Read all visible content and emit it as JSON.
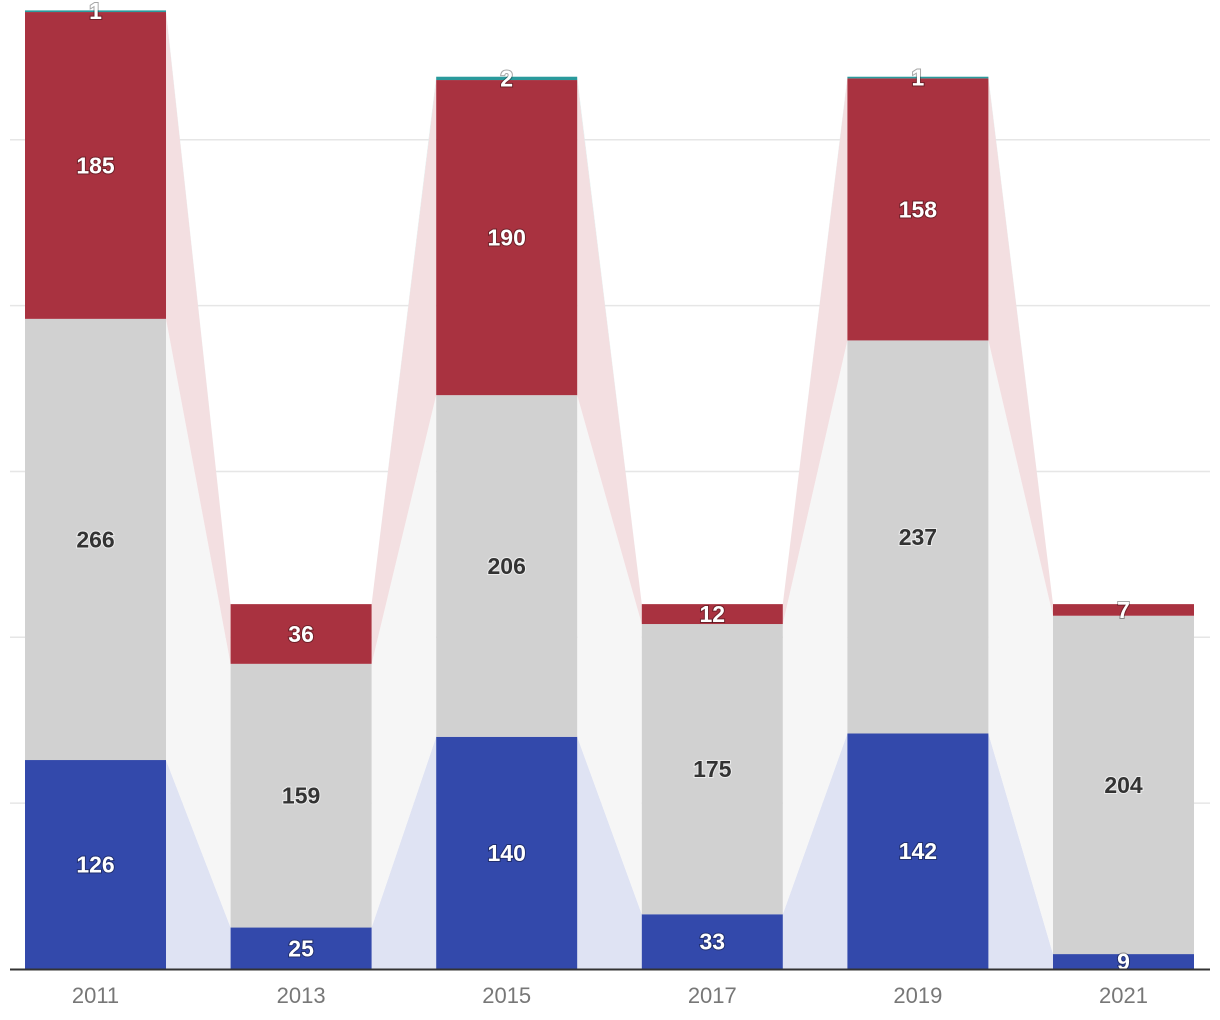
{
  "chart_data": {
    "type": "bar",
    "stacked": true,
    "categories": [
      "2011",
      "2013",
      "2015",
      "2017",
      "2019",
      "2021"
    ],
    "series": [
      {
        "color": "#3349ab",
        "band_color": "#dfe3f3",
        "values": [
          126,
          25,
          140,
          33,
          142,
          9
        ]
      },
      {
        "color": "#d1d1d1",
        "band_color": "#f6f6f6",
        "values": [
          266,
          159,
          206,
          175,
          237,
          204
        ]
      },
      {
        "color": "#a93240",
        "band_color": "#f3dfe1",
        "values": [
          185,
          36,
          190,
          12,
          158,
          7
        ]
      },
      {
        "color": "#2a9a9c",
        "band_color": "#dff0f0",
        "values": [
          1,
          0,
          2,
          0,
          1,
          0
        ]
      }
    ],
    "ylim": [
      0,
      580
    ],
    "yticks": [
      0,
      100,
      200,
      300,
      400,
      500
    ],
    "grid": true,
    "ytick_labels_shown": false,
    "legend": "none"
  }
}
